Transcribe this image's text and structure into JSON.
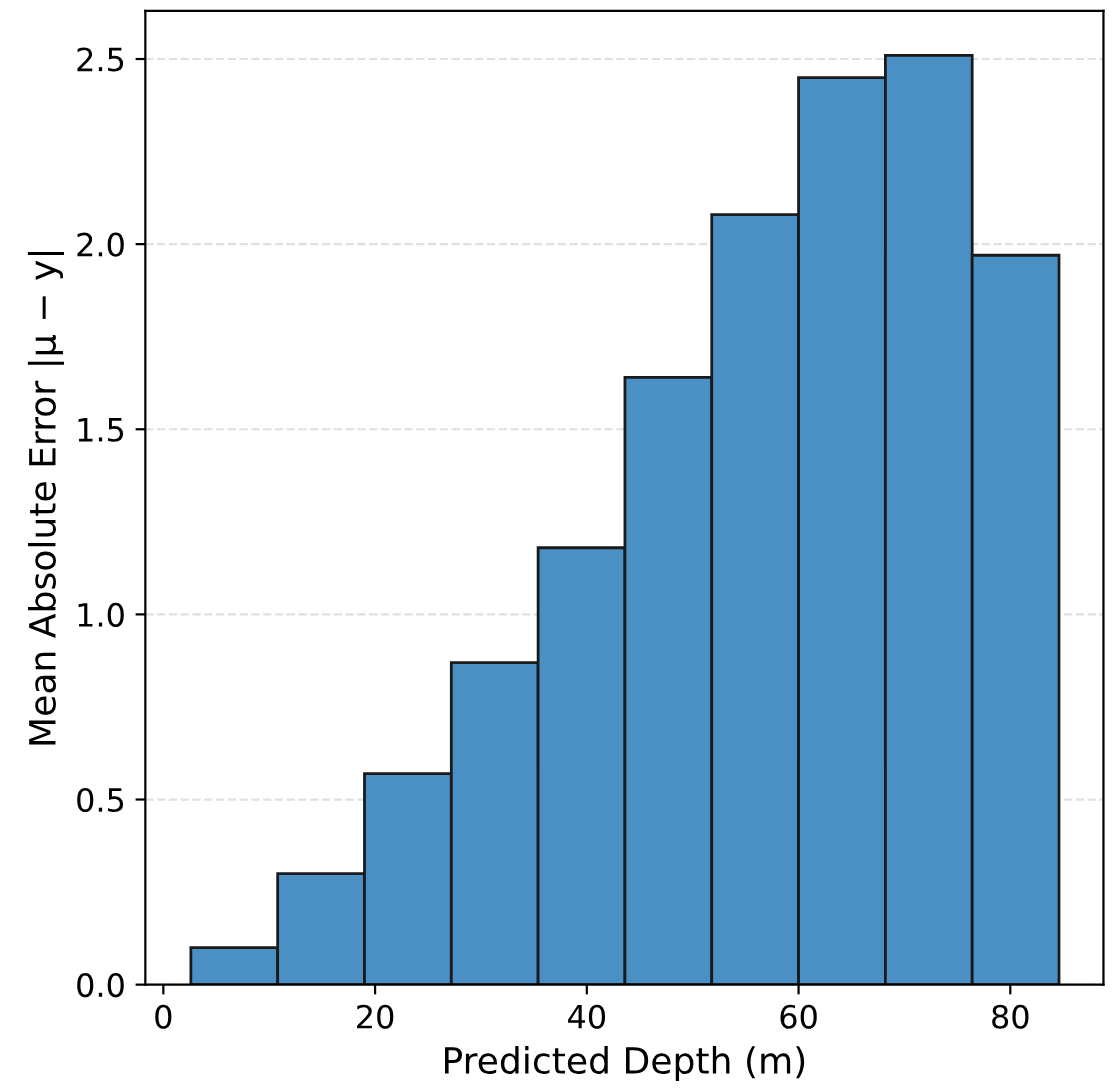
{
  "chart_data": {
    "type": "histogram",
    "xlabel": "Predicted Depth (m)",
    "ylabel": "Mean Absolute Error |μ − y|",
    "bins": [
      2.6,
      10.8,
      19.0,
      27.2,
      35.4,
      43.6,
      51.8,
      60.0,
      68.2,
      76.4,
      84.6
    ],
    "values": [
      0.1,
      0.3,
      0.57,
      0.87,
      1.18,
      1.64,
      2.08,
      2.45,
      2.51,
      1.97
    ],
    "color": "#4a90c4",
    "xlim": [
      -1.7,
      88.8
    ],
    "xticks": [
      0,
      20,
      40,
      60,
      80
    ],
    "ylim": [
      0,
      2.63
    ],
    "yticks": [
      {
        "value": 0,
        "label": "0.0"
      },
      0.5,
      {
        "value": 1,
        "label": "1.0"
      },
      1.5,
      {
        "value": 2,
        "label": "2.0"
      },
      2.5
    ],
    "grid": "y"
  }
}
